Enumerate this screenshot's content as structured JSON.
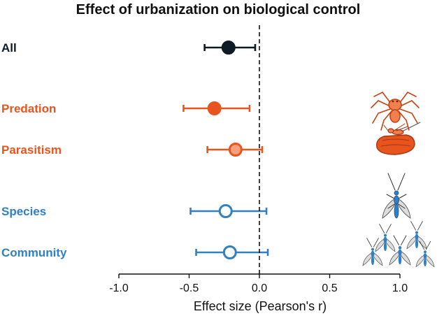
{
  "chart_data": {
    "type": "forest",
    "title": "Effect of urbanization on biological control",
    "xlabel": "Effect size (Pearson's r)",
    "ylabel": "",
    "xlim": [
      -1.0,
      1.0
    ],
    "xticks": [
      -1.0,
      -0.5,
      0.0,
      0.5,
      1.0
    ],
    "xtick_labels": [
      "-1.0",
      "-0.5",
      "0.0",
      "0.5",
      "1.0"
    ],
    "reference_line": 0.0,
    "grid": false,
    "legend": "none",
    "rows": [
      {
        "label": "All",
        "estimate": -0.22,
        "ci_low": -0.39,
        "ci_high": -0.03,
        "color": "#0d1b26",
        "marker": "filled"
      },
      {
        "label": "Predation",
        "estimate": -0.32,
        "ci_low": -0.54,
        "ci_high": -0.07,
        "color": "#e8541e",
        "marker": "filled"
      },
      {
        "label": "Parasitism",
        "estimate": -0.17,
        "ci_low": -0.37,
        "ci_high": 0.02,
        "color": "#e8541e",
        "marker": "light-filled"
      },
      {
        "label": "Species",
        "estimate": -0.24,
        "ci_low": -0.49,
        "ci_high": 0.05,
        "color": "#2f80c4",
        "marker": "open"
      },
      {
        "label": "Community",
        "estimate": -0.21,
        "ci_low": -0.45,
        "ci_high": 0.06,
        "color": "#2f80c4",
        "marker": "open"
      }
    ],
    "icons": [
      "spider-icon",
      "parasitoid-wasp-on-host-icon",
      "single-wasp-icon",
      "wasp-community-icon"
    ]
  },
  "colors": {
    "all": "#0d1b26",
    "natural_enemy": "#e8541e",
    "parasitism_fill": "#f5a07a",
    "scale": "#2f80c4",
    "axis": "#111111"
  }
}
